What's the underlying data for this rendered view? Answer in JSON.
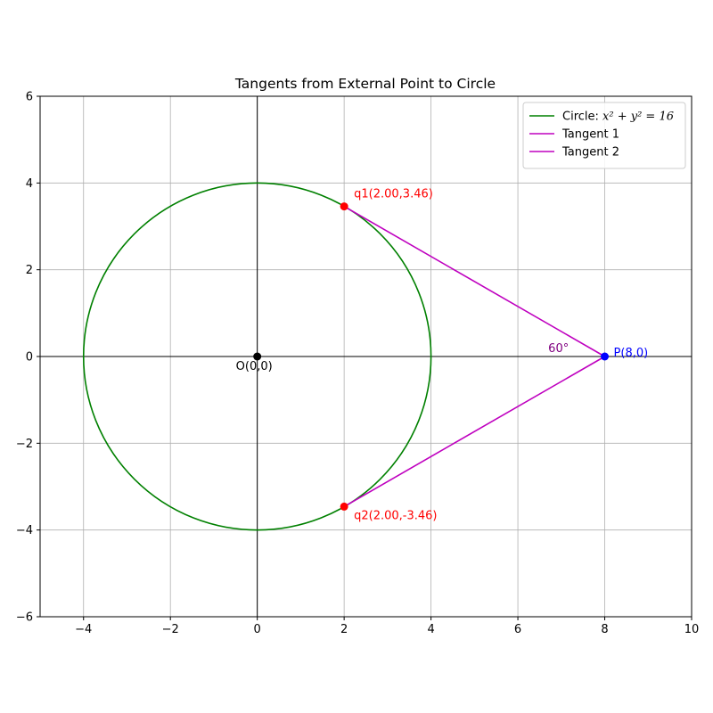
{
  "chart_data": {
    "type": "line",
    "title": "Tangents from External Point to Circle",
    "xlabel": "",
    "ylabel": "",
    "xlim": [
      -5,
      10
    ],
    "ylim": [
      -6,
      6
    ],
    "xticks": [
      -4,
      -2,
      0,
      2,
      4,
      6,
      8,
      10
    ],
    "yticks": [
      -6,
      -4,
      -2,
      0,
      2,
      4,
      6
    ],
    "xtick_labels": [
      "−4",
      "−2",
      "0",
      "2",
      "4",
      "6",
      "8",
      "10"
    ],
    "ytick_labels": [
      "−6",
      "−4",
      "−2",
      "0",
      "2",
      "4",
      "6"
    ],
    "grid": true,
    "legend_position": "upper right",
    "circle": {
      "name_prefix": "Circle: ",
      "equation": "x² + y² = 16",
      "center": [
        0,
        0
      ],
      "radius": 4,
      "color": "#008000"
    },
    "series": [
      {
        "name": "Tangent 1",
        "color": "#bf00bf",
        "x": [
          2.0,
          8.0
        ],
        "y": [
          3.46,
          0.0
        ]
      },
      {
        "name": "Tangent 2",
        "color": "#bf00bf",
        "x": [
          2.0,
          8.0
        ],
        "y": [
          -3.46,
          0.0
        ]
      }
    ],
    "points": [
      {
        "label": "O(0,0)",
        "x": 0,
        "y": 0,
        "color": "#000000",
        "label_color": "#000000",
        "anchor": "below"
      },
      {
        "label": "P(8,0)",
        "x": 8,
        "y": 0,
        "color": "#0000ff",
        "label_color": "#0000ff",
        "anchor": "right"
      },
      {
        "label": "q1(2.00,3.46)",
        "x": 2.0,
        "y": 3.46,
        "color": "#ff0000",
        "label_color": "#ff0000",
        "anchor": "upper-right"
      },
      {
        "label": "q2(2.00,-3.46)",
        "x": 2.0,
        "y": -3.46,
        "color": "#ff0000",
        "label_color": "#ff0000",
        "anchor": "lower-right"
      }
    ],
    "annotations": [
      {
        "text": "60°",
        "x": 6.7,
        "y": 0.1,
        "color": "#800080"
      }
    ]
  }
}
